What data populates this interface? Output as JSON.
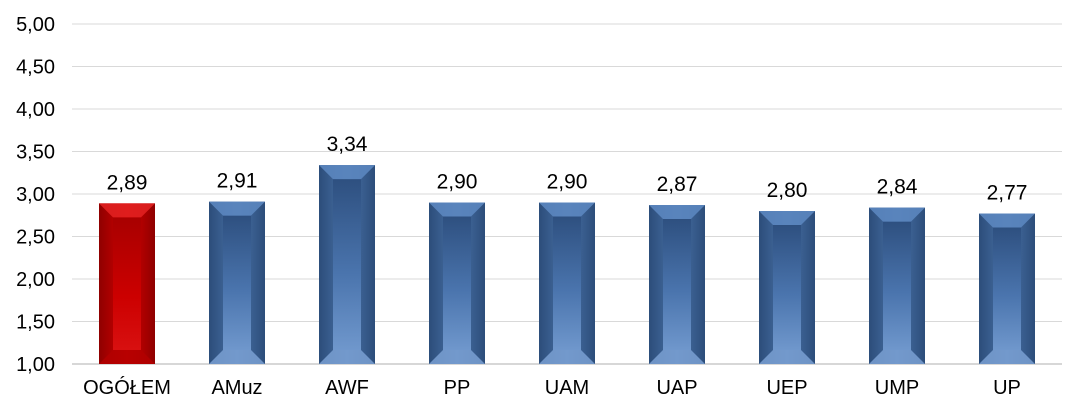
{
  "chart_data": {
    "type": "bar",
    "categories": [
      "OGÓŁEM",
      "AMuz",
      "AWF",
      "PP",
      "UAM",
      "UAP",
      "UEP",
      "UMP",
      "UP"
    ],
    "values": [
      2.89,
      2.91,
      3.34,
      2.9,
      2.9,
      2.87,
      2.8,
      2.84,
      2.77
    ],
    "value_labels": [
      "2,89",
      "2,91",
      "3,34",
      "2,90",
      "2,90",
      "2,87",
      "2,80",
      "2,84",
      "2,77"
    ],
    "ylim": [
      1.0,
      5.0
    ],
    "yticks": [
      1.0,
      1.5,
      2.0,
      2.5,
      3.0,
      3.5,
      4.0,
      4.5,
      5.0
    ],
    "ytick_labels": [
      "1,00",
      "1,50",
      "2,00",
      "2,50",
      "3,00",
      "3,50",
      "4,00",
      "4,50",
      "5,00"
    ],
    "grid": true,
    "legend": "none",
    "colors": {
      "highlight": "#c00000",
      "default": "#4f81bd",
      "grid": "#d9d9d9",
      "axis": "#bfbfbf"
    },
    "highlight_index": 0
  }
}
